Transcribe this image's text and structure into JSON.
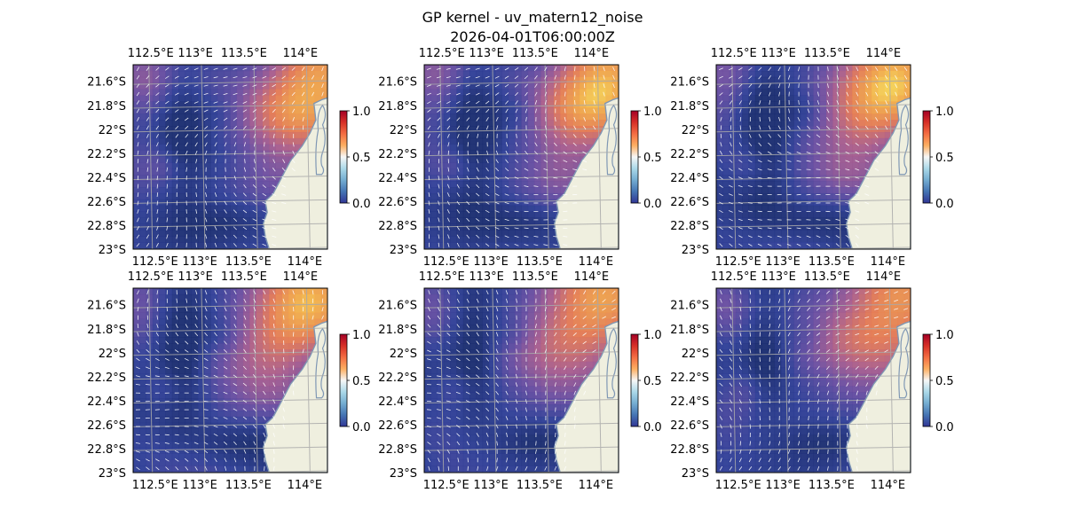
{
  "title": {
    "line1": "GP kernel - uv_matern12_noise",
    "line2": "2026-04-01T06:00:00Z"
  },
  "colors": {
    "ocean": "#a6bddb",
    "land": "#efefdf",
    "coast": "#7f97b4",
    "grid": "#a9a9a9",
    "arrow": "#ffffff",
    "colormap": [
      "#313695",
      "#4575b4",
      "#74add1",
      "#abd9e9",
      "#f7f7f7",
      "#fdae61",
      "#f46d43",
      "#d73027",
      "#a50026"
    ]
  },
  "chart_data": [
    {
      "panel": 1,
      "type": "heatmap",
      "field": "uv_matern12_noise",
      "lon_ticks": [
        "112.5°E",
        "113°E",
        "113.5°E",
        "114°E"
      ],
      "lat_ticks": [
        "21.6°S",
        "21.8°S",
        "22°S",
        "22.2°S",
        "22.4°S",
        "22.6°S",
        "22.8°S",
        "23°S"
      ],
      "lon_range": [
        112.5,
        114.2
      ],
      "lat_range": [
        -23.0,
        -21.45
      ],
      "colorbar": {
        "ticks": [
          "0.0",
          "0.5",
          "1.0"
        ],
        "range": [
          0,
          1
        ]
      },
      "grid": true
    },
    {
      "panel": 2,
      "type": "heatmap",
      "field": "uv_matern12_noise",
      "lon_ticks": [
        "112.5°E",
        "113°E",
        "113.5°E",
        "114°E"
      ],
      "lat_ticks": [
        "21.6°S",
        "21.8°S",
        "22°S",
        "22.2°S",
        "22.4°S",
        "22.6°S",
        "22.8°S",
        "23°S"
      ],
      "lon_range": [
        112.5,
        114.2
      ],
      "lat_range": [
        -23.0,
        -21.45
      ],
      "colorbar": {
        "ticks": [
          "0.0",
          "0.5",
          "1.0"
        ],
        "range": [
          0,
          1
        ]
      },
      "grid": true
    },
    {
      "panel": 3,
      "type": "heatmap",
      "field": "uv_matern12_noise",
      "lon_ticks": [
        "112.5°E",
        "113°E",
        "113.5°E",
        "114°E"
      ],
      "lat_ticks": [
        "21.6°S",
        "21.8°S",
        "22°S",
        "22.2°S",
        "22.4°S",
        "22.6°S",
        "22.8°S",
        "23°S"
      ],
      "lon_range": [
        112.5,
        114.2
      ],
      "lat_range": [
        -23.0,
        -21.45
      ],
      "colorbar": {
        "ticks": [
          "0.0",
          "0.5",
          "1.0"
        ],
        "range": [
          0,
          1
        ]
      },
      "grid": true
    },
    {
      "panel": 4,
      "type": "heatmap",
      "field": "uv_matern12_noise",
      "lon_ticks": [
        "112.5°E",
        "113°E",
        "113.5°E",
        "114°E"
      ],
      "lat_ticks": [
        "21.6°S",
        "21.8°S",
        "22°S",
        "22.2°S",
        "22.4°S",
        "22.6°S",
        "22.8°S",
        "23°S"
      ],
      "lon_range": [
        112.5,
        114.2
      ],
      "lat_range": [
        -23.0,
        -21.45
      ],
      "colorbar": {
        "ticks": [
          "0.0",
          "0.5",
          "1.0"
        ],
        "range": [
          0,
          1
        ]
      },
      "grid": true
    },
    {
      "panel": 5,
      "type": "heatmap",
      "field": "uv_matern12_noise",
      "lon_ticks": [
        "112.5°E",
        "113°E",
        "113.5°E",
        "114°E"
      ],
      "lat_ticks": [
        "21.6°S",
        "21.8°S",
        "22°S",
        "22.2°S",
        "22.4°S",
        "22.6°S",
        "22.8°S",
        "23°S"
      ],
      "lon_range": [
        112.5,
        114.2
      ],
      "lat_range": [
        -23.0,
        -21.45
      ],
      "colorbar": {
        "ticks": [
          "0.0",
          "0.5",
          "1.0"
        ],
        "range": [
          0,
          1
        ]
      },
      "grid": true
    },
    {
      "panel": 6,
      "type": "heatmap",
      "field": "uv_matern12_noise",
      "lon_ticks": [
        "112.5°E",
        "113°E",
        "113.5°E",
        "114°E"
      ],
      "lat_ticks": [
        "21.6°S",
        "21.8°S",
        "22°S",
        "22.2°S",
        "22.4°S",
        "22.6°S",
        "22.8°S",
        "23°S"
      ],
      "lon_range": [
        112.5,
        114.2
      ],
      "lat_range": [
        -23.0,
        -21.45
      ],
      "colorbar": {
        "ticks": [
          "0.0",
          "0.5",
          "1.0"
        ],
        "range": [
          0,
          1
        ]
      },
      "grid": true
    }
  ]
}
